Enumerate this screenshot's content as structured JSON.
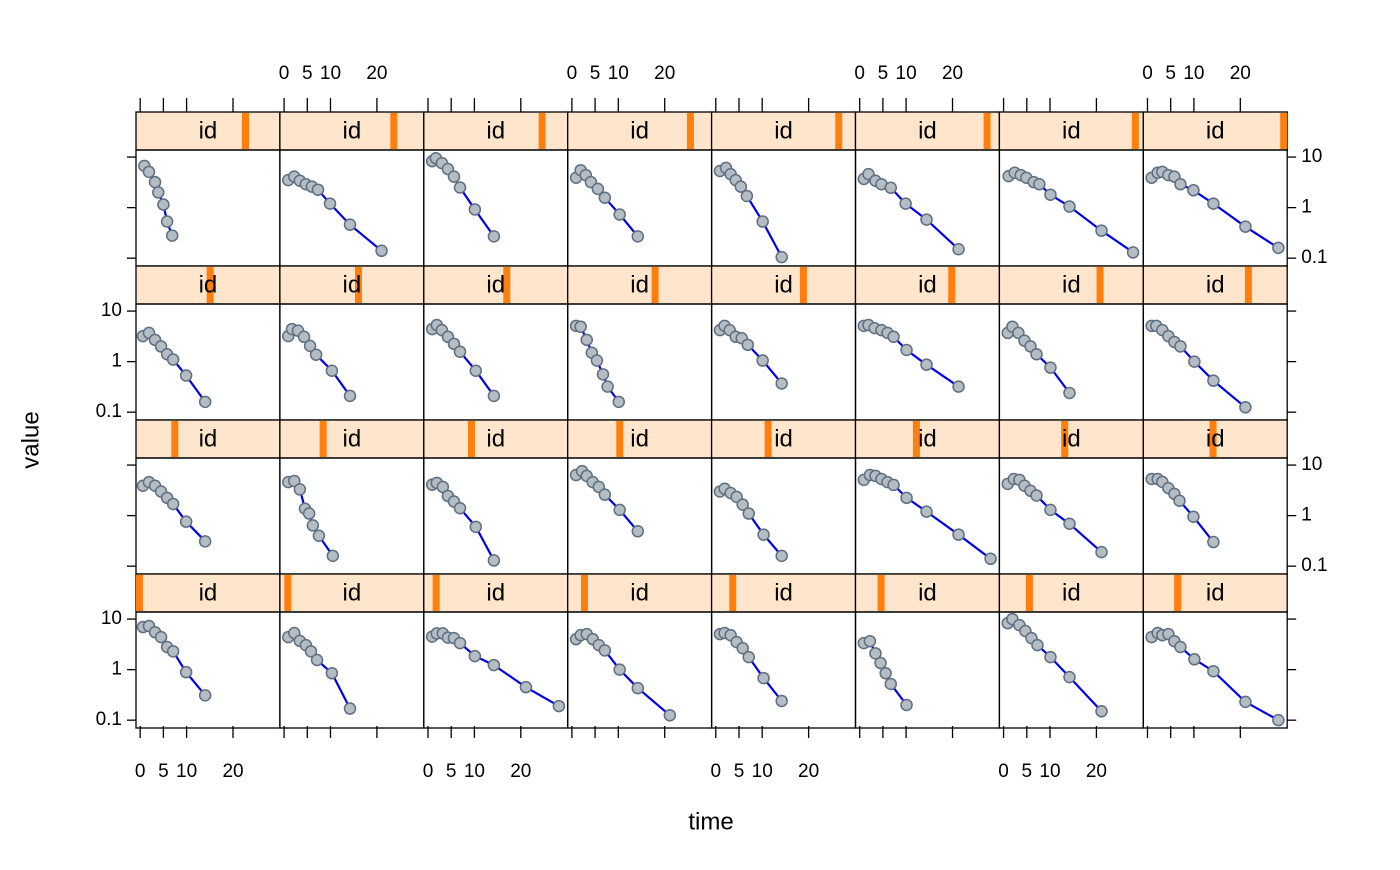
{
  "chart_data": {
    "type": "scatter",
    "xlabel": "time",
    "ylabel": "value",
    "log_y": true,
    "xlim": [
      -0.9,
      30.1
    ],
    "ylim": [
      0.07,
      13.8
    ],
    "xticks": [
      0,
      5,
      10,
      20
    ],
    "yticks": [
      0.1,
      1,
      10
    ],
    "strip_label": "id",
    "id_count": 32,
    "line_color": "#0000ee",
    "point_color": "#b4bcc4",
    "point_edge": "#5f6f80",
    "strip_color": "#ffe5cc",
    "strip_bar_color": "#ff7f0e",
    "panels": [
      {
        "id": 25,
        "x": [
          0.9,
          1.9,
          3.2,
          3.9,
          5,
          5.8,
          6.9
        ],
        "values": [
          6.7,
          5.1,
          3.2,
          2.0,
          1.15,
          0.53,
          0.28
        ]
      },
      {
        "id": 26,
        "x": [
          0.9,
          2.2,
          3.4,
          4.7,
          6,
          7.3,
          9.9,
          14.2,
          21
        ],
        "values": [
          3.5,
          4.1,
          3.4,
          2.9,
          2.6,
          2.26,
          1.2,
          0.46,
          0.14
        ]
      },
      {
        "id": 27,
        "x": [
          0.9,
          1.7,
          3,
          4.3,
          5.6,
          6.9,
          10.1,
          14.2
        ],
        "values": [
          8.3,
          9.5,
          7.6,
          5.8,
          4.1,
          2.5,
          0.92,
          0.27
        ]
      },
      {
        "id": 28,
        "x": [
          0.9,
          1.9,
          3,
          4.1,
          5.6,
          7.1,
          10.3,
          14.2
        ],
        "values": [
          3.9,
          5.5,
          4.4,
          3.2,
          2.35,
          1.57,
          0.73,
          0.27
        ]
      },
      {
        "id": 29,
        "x": [
          0.9,
          2.2,
          3.2,
          4.3,
          5.4,
          6.7,
          10.1,
          14.2
        ],
        "values": [
          5.3,
          6.1,
          4.6,
          3.5,
          2.6,
          1.7,
          0.53,
          0.105
        ]
      },
      {
        "id": 30,
        "x": [
          0.9,
          1.9,
          3.4,
          4.7,
          6.7,
          9.9,
          14.4,
          21.3
        ],
        "values": [
          3.7,
          4.6,
          3.4,
          2.9,
          2.47,
          1.2,
          0.58,
          0.15
        ]
      },
      {
        "id": 31,
        "x": [
          1.1,
          2.4,
          3.7,
          4.9,
          6.5,
          7.7,
          10.1,
          14.2,
          21.1,
          27.9
        ],
        "values": [
          4.2,
          4.9,
          4.4,
          3.9,
          3.2,
          2.9,
          1.8,
          1.05,
          0.35,
          0.13
        ]
      },
      {
        "id": 32,
        "x": [
          0.9,
          2.2,
          3.2,
          4.5,
          5.8,
          7.1,
          9.9,
          14.2,
          21.1,
          28.2
        ],
        "values": [
          3.9,
          4.9,
          5.1,
          4.4,
          4.1,
          2.9,
          2.2,
          1.2,
          0.42,
          0.16
        ]
      },
      {
        "id": 17,
        "x": [
          0.6,
          1.9,
          3.2,
          4.5,
          5.8,
          7.1,
          9.9,
          14
        ],
        "values": [
          3.2,
          3.7,
          2.7,
          2.0,
          1.4,
          1.1,
          0.53,
          0.16
        ]
      },
      {
        "id": 18,
        "x": [
          0.9,
          1.7,
          3,
          4.3,
          5.6,
          6.9,
          10.3,
          14.2
        ],
        "values": [
          3.2,
          4.4,
          4.1,
          3.1,
          2.05,
          1.37,
          0.66,
          0.21
        ]
      },
      {
        "id": 19,
        "x": [
          0.9,
          1.9,
          3,
          4.3,
          5.6,
          6.9,
          10.3,
          14.2
        ],
        "values": [
          4.4,
          5.3,
          4.2,
          3.1,
          2.25,
          1.57,
          0.66,
          0.21
        ]
      },
      {
        "id": 20,
        "x": [
          0.9,
          1.9,
          3.2,
          4.3,
          5.4,
          6.7,
          7.7,
          10.1
        ],
        "values": [
          5.1,
          4.9,
          2.7,
          1.5,
          1.05,
          0.56,
          0.32,
          0.16
        ]
      },
      {
        "id": 21,
        "x": [
          0.9,
          1.9,
          3,
          4.3,
          5.6,
          6.9,
          10.1,
          14.2
        ],
        "values": [
          4.2,
          5.1,
          4.2,
          3.1,
          2.9,
          2.15,
          1.05,
          0.37
        ]
      },
      {
        "id": 22,
        "x": [
          0.9,
          1.9,
          3.2,
          4.7,
          6,
          7.3,
          10.1,
          14.4,
          21.3
        ],
        "values": [
          5.1,
          5.3,
          4.6,
          4.2,
          3.7,
          3.1,
          1.7,
          0.87,
          0.32
        ]
      },
      {
        "id": 23,
        "x": [
          0.9,
          1.9,
          3.2,
          4.5,
          5.8,
          7.1,
          10.1,
          14.2
        ],
        "values": [
          3.7,
          4.9,
          3.7,
          2.6,
          2.0,
          1.4,
          0.76,
          0.24
        ]
      },
      {
        "id": 24,
        "x": [
          0.9,
          1.9,
          3.2,
          4.5,
          5.8,
          7.1,
          10.1,
          14.2,
          21.1
        ],
        "values": [
          5.1,
          5.1,
          4.2,
          3.2,
          2.45,
          2.0,
          1.0,
          0.42,
          0.125
        ]
      },
      {
        "id": 9,
        "x": [
          0.6,
          1.9,
          3.2,
          4.5,
          5.8,
          7.1,
          9.9,
          14
        ],
        "values": [
          3.9,
          4.6,
          3.9,
          3.0,
          2.25,
          1.7,
          0.76,
          0.31
        ]
      },
      {
        "id": 10,
        "x": [
          0.9,
          2.2,
          3.4,
          4.5,
          5.4,
          6.2,
          7.5,
          10.5
        ],
        "values": [
          4.6,
          4.85,
          3.3,
          1.37,
          1.1,
          0.64,
          0.4,
          0.16
        ]
      },
      {
        "id": 11,
        "x": [
          0.9,
          1.9,
          3.2,
          4.3,
          5.6,
          6.9,
          10.3,
          14.2
        ],
        "values": [
          4.1,
          4.45,
          3.7,
          2.45,
          1.9,
          1.4,
          0.6,
          0.13
        ]
      },
      {
        "id": 12,
        "x": [
          0.9,
          2.2,
          3.2,
          4.5,
          5.8,
          7.1,
          10.3,
          14.2
        ],
        "values": [
          6.35,
          7.6,
          6.1,
          4.6,
          3.7,
          2.6,
          1.3,
          0.49
        ]
      },
      {
        "id": 13,
        "x": [
          0.9,
          1.9,
          3.2,
          4.5,
          5.8,
          7.1,
          10.3,
          14.2
        ],
        "values": [
          3.0,
          3.4,
          2.8,
          2.35,
          1.65,
          1.1,
          0.42,
          0.16
        ]
      },
      {
        "id": 14,
        "x": [
          0.9,
          2.2,
          3.4,
          4.7,
          6,
          7.3,
          10.1,
          14.4,
          21.3,
          28.2
        ],
        "values": [
          5.1,
          6.35,
          6.1,
          5.3,
          4.6,
          4.05,
          2.25,
          1.2,
          0.42,
          0.14
        ]
      },
      {
        "id": 15,
        "x": [
          0.9,
          2.2,
          3.4,
          4.5,
          5.8,
          7.1,
          10.1,
          14.2,
          21.1
        ],
        "values": [
          4.25,
          5.3,
          5.1,
          3.9,
          3.1,
          2.5,
          1.3,
          0.69,
          0.19
        ]
      },
      {
        "id": 16,
        "x": [
          0.9,
          2.2,
          3.2,
          4.5,
          5.8,
          6.9,
          9.9,
          14.2
        ],
        "values": [
          5.3,
          5.3,
          4.65,
          3.5,
          2.7,
          1.97,
          0.95,
          0.3
        ]
      },
      {
        "id": 1,
        "x": [
          0.6,
          1.9,
          3.2,
          4.5,
          5.8,
          7.1,
          9.9,
          14
        ],
        "values": [
          6.95,
          7.3,
          5.5,
          4.4,
          2.8,
          2.3,
          0.89,
          0.31
        ]
      },
      {
        "id": 2,
        "x": [
          0.9,
          2.2,
          3.4,
          4.7,
          5.8,
          7.1,
          10.3,
          14.2
        ],
        "values": [
          4.4,
          5.3,
          3.7,
          3.05,
          2.3,
          1.55,
          0.85,
          0.17
        ]
      },
      {
        "id": 3,
        "x": [
          0.9,
          1.9,
          3.2,
          4.3,
          5.6,
          6.9,
          10.1,
          14.2,
          21.1,
          28.2
        ],
        "values": [
          4.5,
          5.2,
          5.2,
          4.3,
          4.2,
          3.35,
          1.85,
          1.23,
          0.45,
          0.19
        ]
      },
      {
        "id": 4,
        "x": [
          0.9,
          1.9,
          3.2,
          4.5,
          5.8,
          7.1,
          10.3,
          14.2,
          21.1
        ],
        "values": [
          4.0,
          4.8,
          5.05,
          4.0,
          3.05,
          2.4,
          1.0,
          0.43,
          0.125
        ]
      },
      {
        "id": 5,
        "x": [
          0.9,
          1.9,
          3.2,
          4.5,
          5.8,
          7.1,
          10.3,
          14.2
        ],
        "values": [
          5.05,
          5.3,
          4.8,
          3.5,
          2.65,
          1.77,
          0.68,
          0.24
        ]
      },
      {
        "id": 6,
        "x": [
          0.9,
          2.2,
          3.4,
          4.5,
          5.6,
          6.7,
          10.1
        ],
        "values": [
          3.35,
          3.65,
          2.1,
          1.35,
          0.85,
          0.52,
          0.2
        ]
      },
      {
        "id": 7,
        "x": [
          0.9,
          1.9,
          3.4,
          4.7,
          6,
          7.3,
          10.1,
          14.2,
          21.1
        ],
        "values": [
          8.3,
          10,
          7.6,
          5.8,
          4.2,
          3.05,
          1.77,
          0.71,
          0.15
        ]
      },
      {
        "id": 8,
        "x": [
          0.9,
          2.2,
          3.2,
          4.5,
          5.8,
          7.1,
          10.1,
          14.2,
          21.1,
          28.2
        ],
        "values": [
          4.4,
          5.3,
          4.8,
          5.05,
          3.65,
          2.8,
          1.6,
          0.93,
          0.23,
          0.1
        ]
      }
    ]
  }
}
